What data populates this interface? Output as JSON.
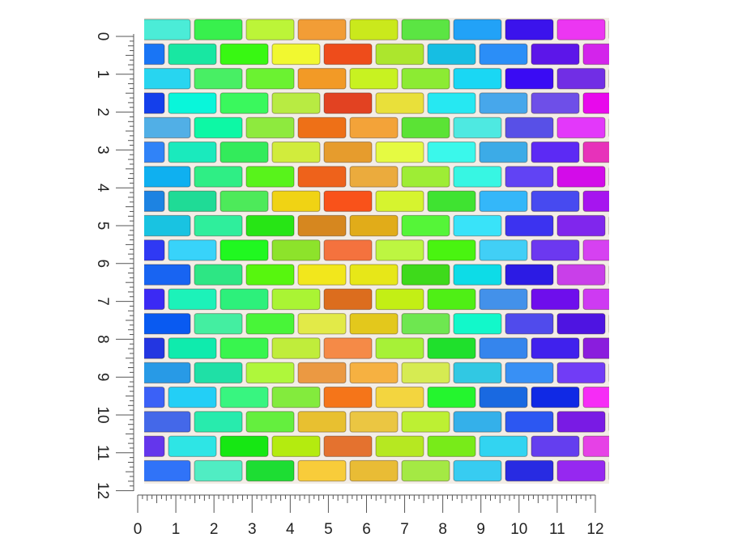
{
  "left_ruler": {
    "labels": [
      0,
      1,
      2,
      3,
      4,
      5,
      6,
      7,
      8,
      9,
      10,
      11,
      12
    ]
  },
  "bottom_ruler": {
    "labels": [
      0,
      1,
      2,
      3,
      4,
      5,
      6,
      7,
      8,
      9,
      10,
      11,
      12
    ]
  }
}
